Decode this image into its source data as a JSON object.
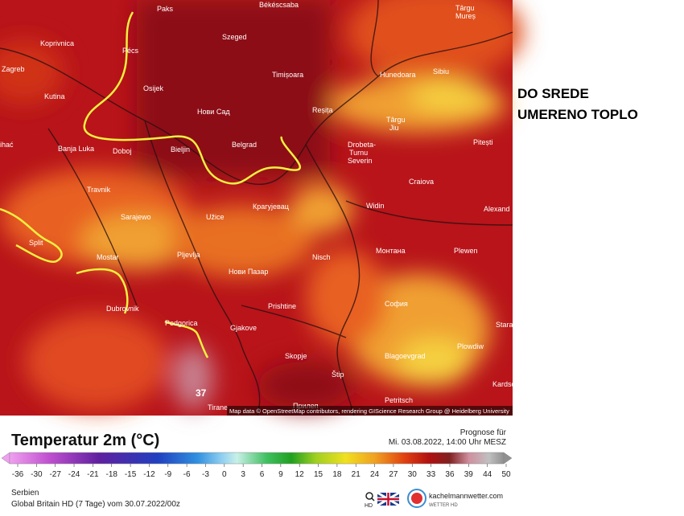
{
  "map": {
    "cities": [
      "Paks",
      "Békéscsaba",
      "Târgu",
      "Mureș",
      "Koprivnica",
      "Szeged",
      "Pécs",
      "Zagreb",
      "Timișoara",
      "Hunedoara",
      "Sibiu",
      "Osijek",
      "Kutina",
      "Нови Сад",
      "Reșița",
      "Târgu",
      "Jiu",
      "Banja Luka",
      "Doboj",
      "Bieljin",
      "Belgrad",
      "Drobeta-",
      "Turnu",
      "Severin",
      "Pitești",
      "Travnik",
      "Крагујевац",
      "Craiova",
      "Sarajewo",
      "Užice",
      "Widin",
      "Alexand",
      "Split",
      "Mostar",
      "Pljevlja",
      "Nisch",
      "Монтана",
      "Plewen",
      "Нови Пазар",
      "Dubrovnik",
      "Prishtine",
      "София",
      "Podgorica",
      "Gjakove",
      "Skopje",
      "Blagoevgrad",
      "Plowdiw",
      "Štip",
      "Tirane",
      "Petritsch",
      "Kardsch",
      "Stara",
      "Прилеп",
      "ihać"
    ],
    "credit": "Map data © OpenStreetMap contributors, rendering GIScience Research Group @ Heidelberg University"
  },
  "annotation": [
    "DO SREDE",
    "UMERENO TOPLO"
  ],
  "legend": {
    "title": "Temperatur 2m (°C)",
    "forecast_label": "Prognose für",
    "forecast_time": "Mi. 03.08.2022, 14:00 Uhr MESZ",
    "ticks": [
      -36,
      -30,
      -27,
      -24,
      -21,
      -18,
      -15,
      -12,
      -9,
      -6,
      -3,
      0,
      3,
      6,
      9,
      12,
      15,
      18,
      21,
      24,
      27,
      30,
      33,
      36,
      39,
      44,
      50
    ]
  },
  "footer": {
    "region": "Serbien",
    "model": "Global Britain HD (7 Tage) vom 30.07.2022/00z",
    "search": "HD",
    "brand": "kachelmannwetter.com",
    "brand_sub": "WETTER HD"
  }
}
